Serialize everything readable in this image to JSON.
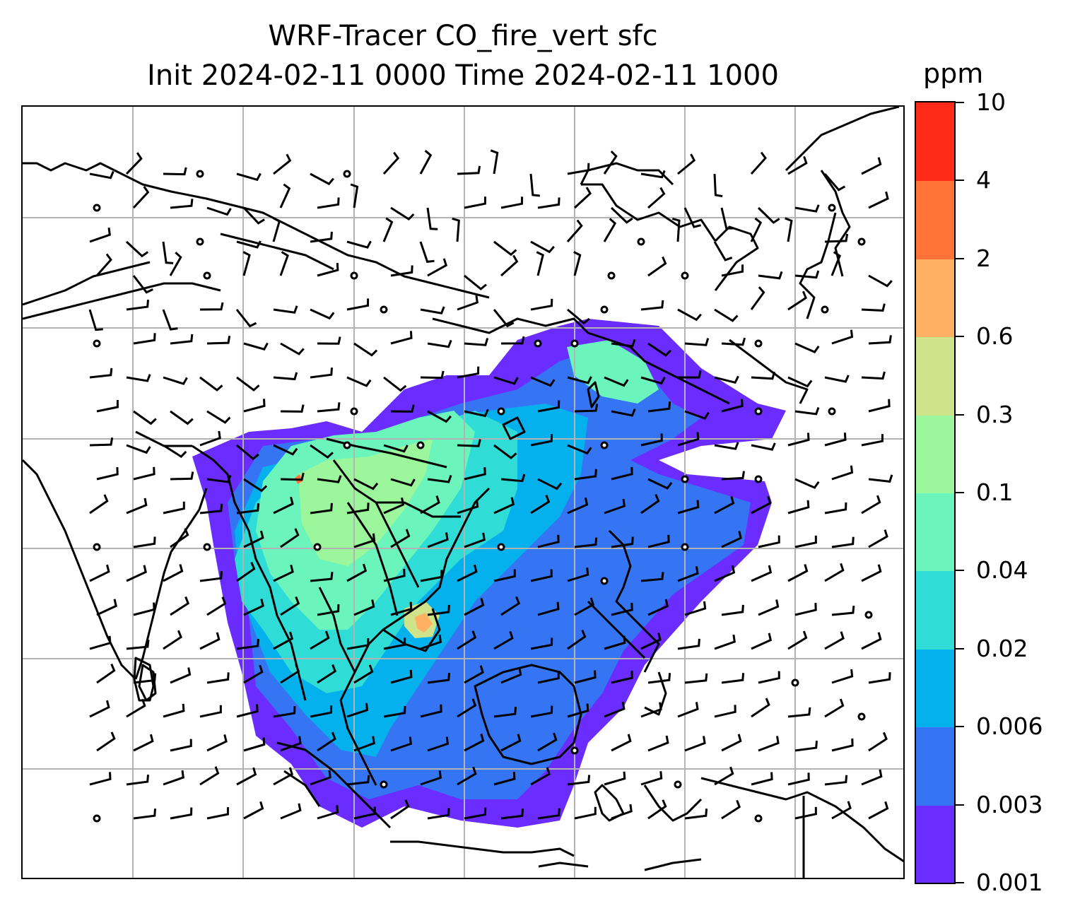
{
  "title_line1": "WRF-Tracer CO_fire_vert sfc",
  "title_line2": "Init 2024-02-11 0000 Time 2024-02-11 1000",
  "colorbar": {
    "unit": "ppm",
    "levels": [
      "0.001",
      "0.003",
      "0.006",
      "0.02",
      "0.04",
      "0.1",
      "0.3",
      "0.6",
      "2",
      "4",
      "10"
    ],
    "colors": [
      "#6a2cff",
      "#3575f4",
      "#04b1ec",
      "#2fdcd6",
      "#6bf5bd",
      "#9cf79c",
      "#cee38a",
      "#ffb063",
      "#ff7339",
      "#ff2b16"
    ]
  },
  "map": {
    "gridlines": true,
    "grid_color": "#b3b3b3",
    "coastline_color": "#000000",
    "wind_barb_color": "#000000"
  }
}
